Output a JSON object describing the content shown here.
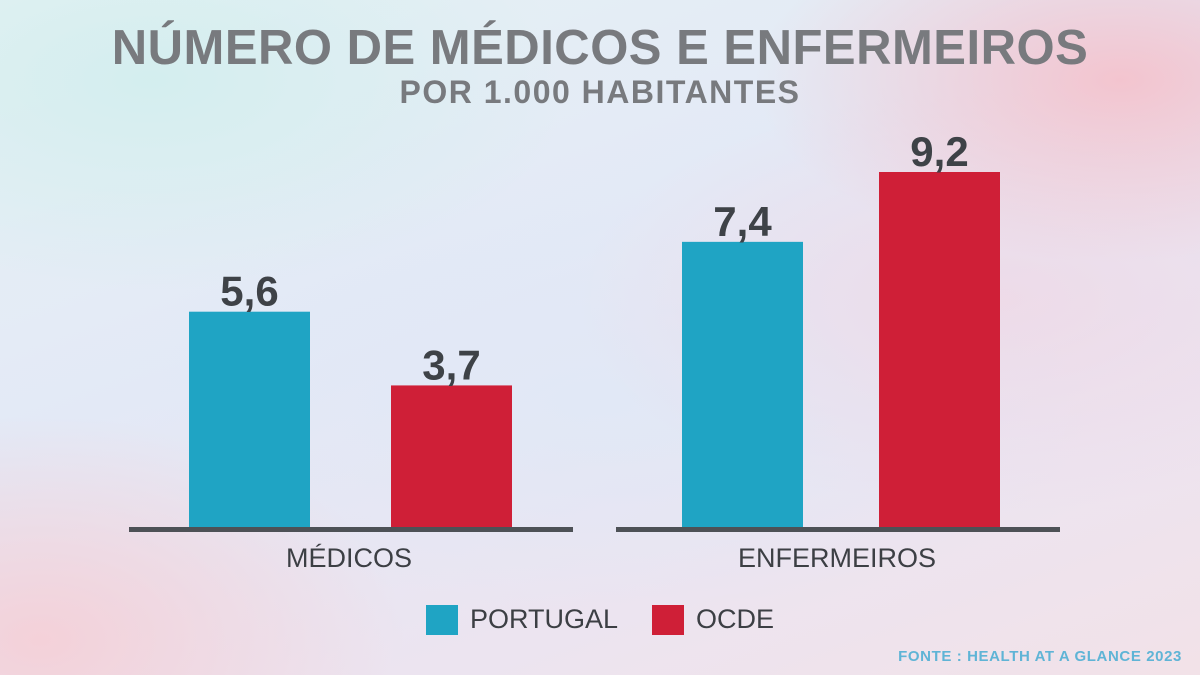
{
  "chart_data": {
    "type": "bar",
    "title": "NÚMERO DE MÉDICOS E ENFERMEIROS",
    "subtitle": "POR 1.000 HABITANTES",
    "categories": [
      "MÉDICOS",
      "ENFERMEIROS"
    ],
    "series": [
      {
        "name": "PORTUGAL",
        "color": "#1fa4c4",
        "values": [
          5.6,
          7.4
        ],
        "labels": [
          "5,6",
          "7,4"
        ]
      },
      {
        "name": "OCDE",
        "color": "#cf1f37",
        "values": [
          3.7,
          9.2
        ],
        "labels": [
          "3,7",
          "9,2"
        ]
      }
    ],
    "ylim": [
      0,
      9.2
    ],
    "grid": false,
    "legend_position": "bottom-center",
    "source": "FONTE : HEALTH AT A GLANCE 2023"
  }
}
